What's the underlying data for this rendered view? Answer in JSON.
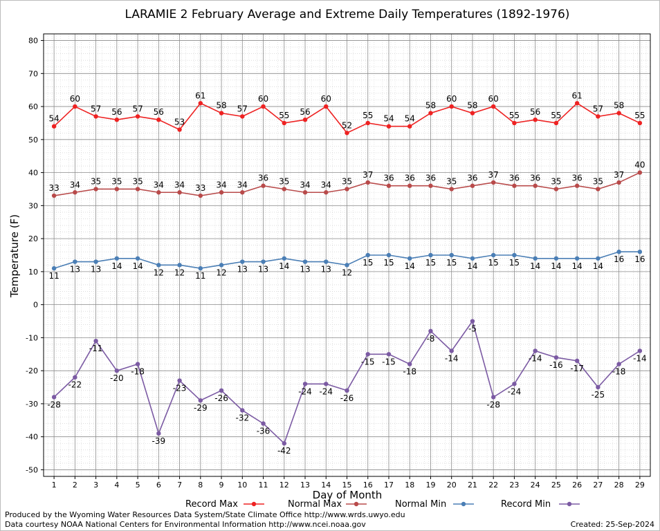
{
  "chart_data": {
    "type": "line",
    "title": "LARAMIE 2 February Average and Extreme Daily Temperatures (1892-1976)",
    "xlabel": "Day of Month",
    "ylabel": "Temperature (F)",
    "ylim": [
      -52,
      82
    ],
    "yticks": [
      80,
      70,
      60,
      50,
      40,
      30,
      20,
      10,
      0,
      -10,
      -20,
      -30,
      -40,
      -50
    ],
    "x": [
      1,
      2,
      3,
      4,
      5,
      6,
      7,
      8,
      9,
      10,
      11,
      12,
      13,
      14,
      15,
      16,
      17,
      18,
      19,
      20,
      21,
      22,
      23,
      24,
      25,
      26,
      27,
      28,
      29
    ],
    "grid": true,
    "legend_position": "bottom",
    "series": [
      {
        "name": "Record Max",
        "color": "#ee2222",
        "label_pos": "above",
        "values": [
          54,
          60,
          57,
          56,
          57,
          56,
          53,
          61,
          58,
          57,
          60,
          55,
          56,
          60,
          52,
          55,
          54,
          54,
          58,
          60,
          58,
          60,
          55,
          56,
          55,
          61,
          57,
          58,
          55
        ]
      },
      {
        "name": "Normal Max",
        "color": "#b84a4a",
        "label_pos": "above",
        "values": [
          33,
          34,
          35,
          35,
          35,
          34,
          34,
          33,
          34,
          34,
          36,
          35,
          34,
          34,
          35,
          37,
          36,
          36,
          36,
          35,
          36,
          37,
          36,
          36,
          35,
          36,
          35,
          37,
          40
        ]
      },
      {
        "name": "Normal Min",
        "color": "#4a7eb5",
        "label_pos": "below",
        "values": [
          11,
          13,
          13,
          14,
          14,
          12,
          12,
          11,
          12,
          13,
          13,
          14,
          13,
          13,
          12,
          15,
          15,
          14,
          15,
          15,
          14,
          15,
          15,
          14,
          14,
          14,
          14,
          16,
          16
        ]
      },
      {
        "name": "Record Min",
        "color": "#7b5aa3",
        "label_pos": "below",
        "values": [
          -28,
          -22,
          -11,
          -20,
          -18,
          -39,
          -23,
          -29,
          -26,
          -32,
          -36,
          -42,
          -24,
          -24,
          -26,
          -15,
          -15,
          -18,
          -8,
          -14,
          -5,
          -28,
          -24,
          -14,
          -16,
          -17,
          -25,
          -18,
          -14
        ]
      }
    ]
  },
  "footer": {
    "line1": "Produced by the Wyoming Water Resources Data System/State Climate Office http://www.wrds.uwyo.edu",
    "line2": "Data courtesy NOAA National Centers for Environmental Information http://www.ncei.noaa.gov",
    "created": "Created: 25-Sep-2024"
  }
}
